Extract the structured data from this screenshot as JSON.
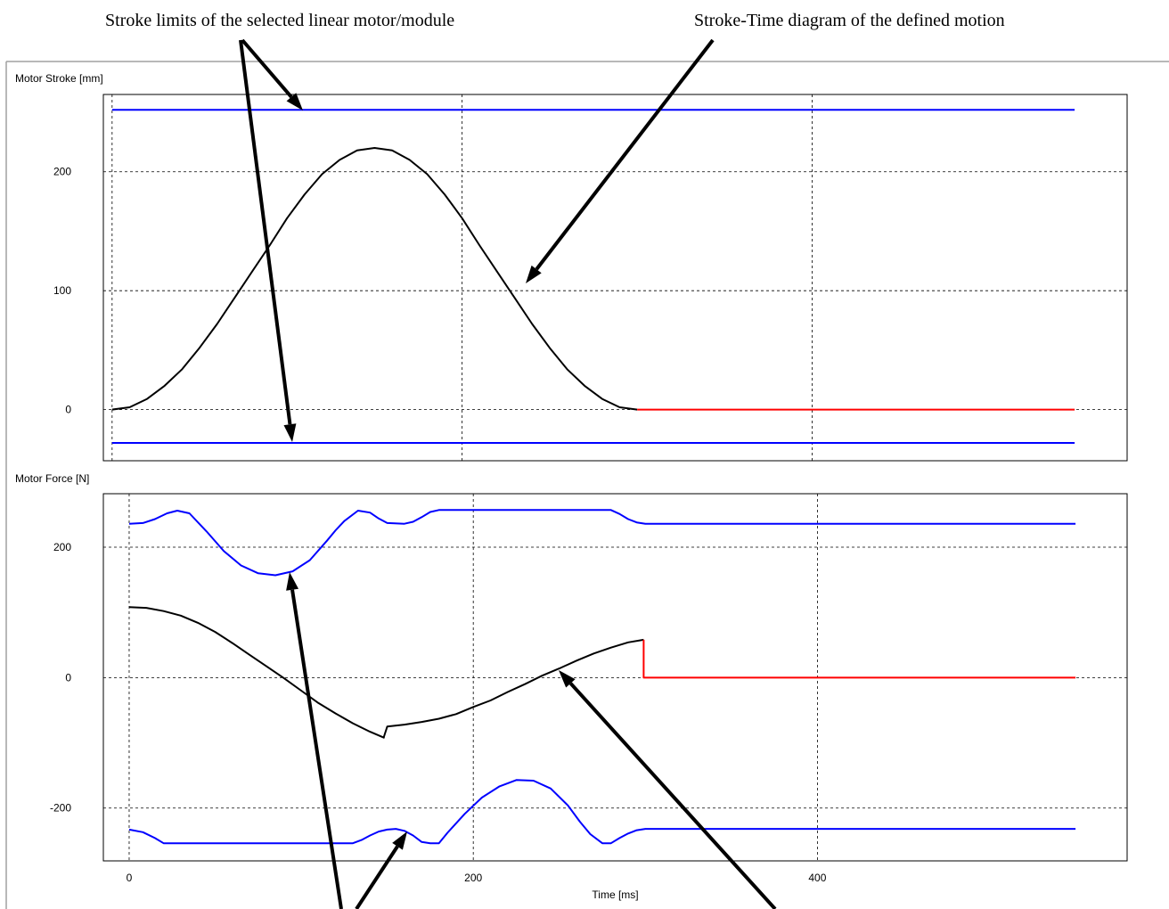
{
  "captions": {
    "stroke_limits": "Stroke limits of the selected linear motor/module",
    "stroke_time": "Stroke-Time diagram of the defined motion"
  },
  "chart_data": [
    {
      "type": "line",
      "title": "Motor Stroke [mm]",
      "xlim": [
        -5,
        580
      ],
      "ylim": [
        -43,
        265
      ],
      "x_ticks": [
        0,
        200,
        400
      ],
      "y_ticks": [
        0,
        100,
        200
      ],
      "y_tick_labels": [
        "0",
        "100",
        "200"
      ],
      "x_tick_labels": [],
      "grid": true,
      "series": [
        {
          "color": "#0000ff",
          "x": [
            0,
            550
          ],
          "y": [
            252,
            252
          ]
        },
        {
          "color": "#0000ff",
          "x": [
            0,
            550
          ],
          "y": [
            -28,
            -28
          ]
        },
        {
          "color": "#000000",
          "x": [
            0,
            10,
            20,
            30,
            40,
            50,
            60,
            70,
            80,
            90,
            100,
            110,
            120,
            130,
            140,
            150,
            160,
            170,
            180,
            190,
            200,
            210,
            220,
            230,
            240,
            250,
            260,
            270,
            280,
            290,
            300
          ],
          "y": [
            0,
            2,
            9,
            20,
            34,
            52,
            72,
            94,
            116,
            138,
            161,
            181,
            198,
            210,
            218,
            220,
            218,
            210,
            198,
            181,
            161,
            138,
            116,
            94,
            72,
            52,
            34,
            20,
            9,
            2,
            0
          ]
        },
        {
          "color": "#ff0000",
          "x": [
            300,
            550
          ],
          "y": [
            0,
            0
          ]
        }
      ]
    },
    {
      "type": "line",
      "title": "Motor Force [N]",
      "xlabel": "Time [ms]",
      "xlim": [
        -15,
        580
      ],
      "ylim": [
        -281,
        282
      ],
      "x_ticks": [
        0,
        200,
        400
      ],
      "x_tick_labels": [
        "0",
        "200",
        "400"
      ],
      "y_ticks": [
        -200,
        0,
        200
      ],
      "y_tick_labels": [
        "-200",
        "0",
        "200"
      ],
      "grid": true,
      "series": [
        {
          "color": "#0000ff",
          "x": [
            0,
            8,
            15,
            22,
            28,
            35,
            45,
            55,
            65,
            75,
            85,
            95,
            105,
            115,
            120,
            125,
            133,
            140,
            145,
            150,
            160,
            165,
            170,
            175,
            180,
            280,
            285,
            290,
            295,
            300,
            550
          ],
          "y": [
            236,
            237,
            243,
            252,
            256,
            252,
            224,
            194,
            172,
            160,
            157,
            163,
            180,
            210,
            226,
            240,
            256,
            253,
            244,
            237,
            236,
            239,
            246,
            254,
            257,
            257,
            251,
            243,
            238,
            236,
            236
          ]
        },
        {
          "color": "#0000ff",
          "x": [
            0,
            8,
            15,
            20,
            130,
            135,
            140,
            145,
            150,
            155,
            160,
            165,
            170,
            175,
            180,
            185,
            195,
            205,
            215,
            225,
            235,
            245,
            255,
            262,
            268,
            275,
            280,
            285,
            290,
            295,
            300,
            550
          ],
          "y": [
            -233,
            -237,
            -246,
            -254,
            -254,
            -249,
            -242,
            -236,
            -233,
            -232,
            -235,
            -242,
            -252,
            -254,
            -254,
            -238,
            -209,
            -184,
            -167,
            -157,
            -158,
            -170,
            -196,
            -221,
            -240,
            -254,
            -254,
            -246,
            -239,
            -234,
            -232,
            -232
          ]
        },
        {
          "color": "#000000",
          "x": [
            0,
            10,
            20,
            30,
            40,
            50,
            60,
            70,
            80,
            90,
            100,
            110,
            120,
            130,
            140,
            148,
            148,
            150,
            160,
            170,
            180,
            190,
            200,
            210,
            220,
            230,
            240,
            250,
            260,
            270,
            280,
            290,
            299,
            299
          ],
          "y": [
            108,
            107,
            102,
            95,
            84,
            70,
            53,
            35,
            17,
            -1,
            -20,
            -39,
            -55,
            -70,
            -83,
            -92,
            -91,
            -75,
            -72,
            -68,
            -63,
            -56,
            -45,
            -35,
            -22,
            -10,
            3,
            14,
            26,
            37,
            46,
            54,
            58,
            58
          ]
        },
        {
          "color": "#ff0000",
          "x": [
            299,
            299,
            550
          ],
          "y": [
            58,
            0,
            0
          ]
        }
      ]
    }
  ]
}
